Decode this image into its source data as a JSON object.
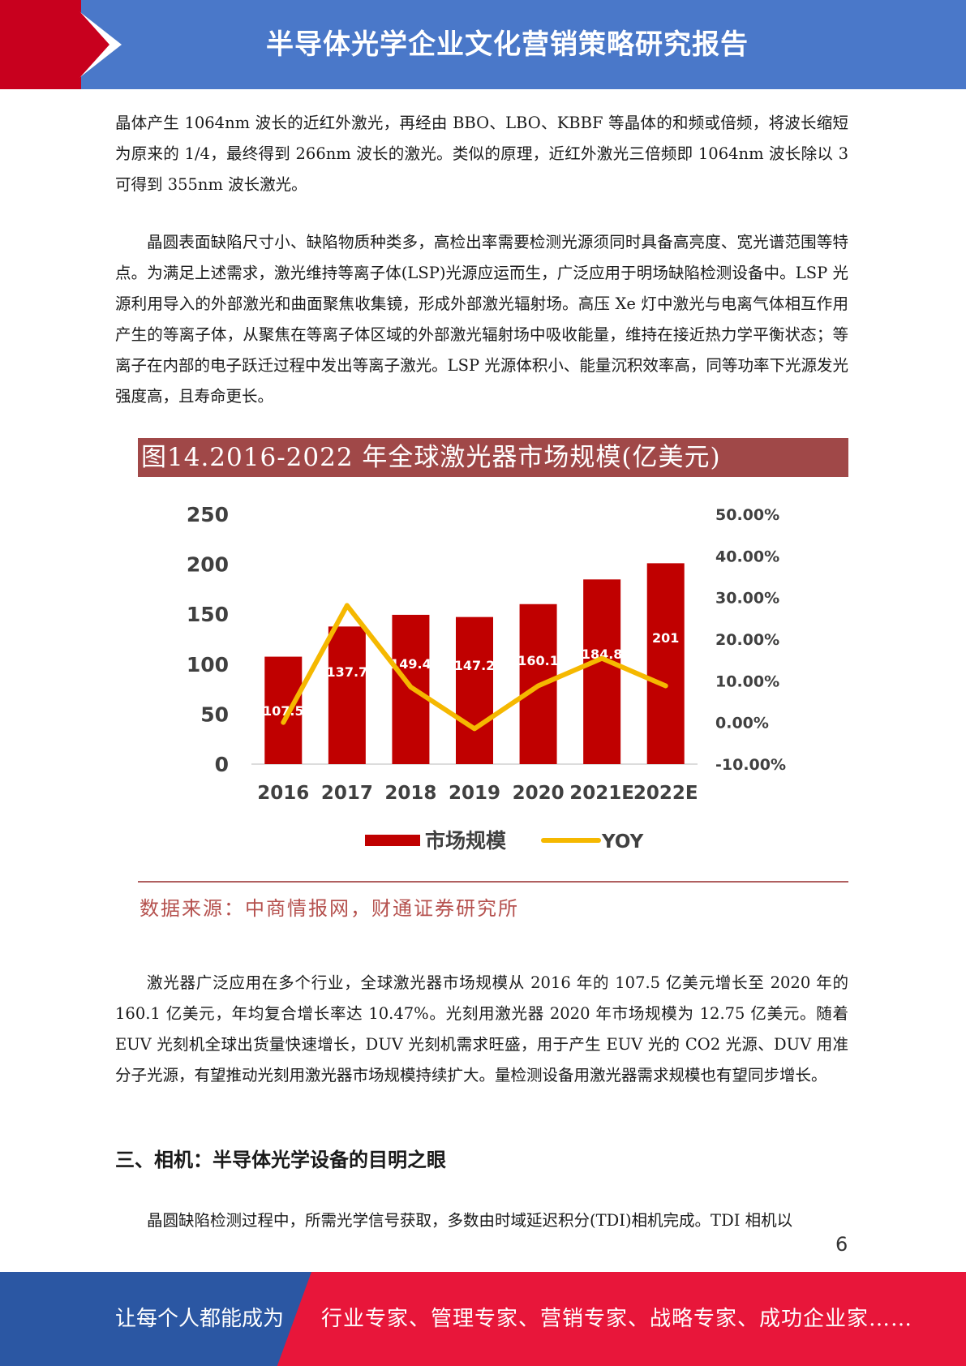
{
  "header": {
    "title": "半导体光学企业文化营销策略研究报告"
  },
  "body": {
    "p1": "晶体产生 1064nm 波长的近红外激光，再经由 BBO、LBO、KBBF 等晶体的和频或倍频，将波长缩短为原来的 1/4，最终得到 266nm 波长的激光。类似的原理，近红外激光三倍频即 1064nm 波长除以 3 可得到 355nm 波长激光。",
    "p2": "晶圆表面缺陷尺寸小、缺陷物质种类多，高检出率需要检测光源须同时具备高亮度、宽光谱范围等特点。为满足上述需求，激光维持等离子体(LSP)光源应运而生，广泛应用于明场缺陷检测设备中。LSP 光源利用导入的外部激光和曲面聚焦收集镜，形成外部激光辐射场。高压 Xe 灯中激光与电离气体相互作用产生的等离子体，从聚焦在等离子体区域的外部激光辐射场中吸收能量，维持在接近热力学平衡状态；等离子在内部的电子跃迁过程中发出等离子激光。LSP 光源体积小、能量沉积效率高，同等功率下光源发光强度高，且寿命更长。",
    "p3": "激光器广泛应用在多个行业，全球激光器市场规模从 2016 年的 107.5 亿美元增长至 2020 年的 160.1 亿美元，年均复合增长率达 10.47%。光刻用激光器 2020 年市场规模为 12.75 亿美元。随着 EUV 光刻机全球出货量快速增长，DUV 光刻机需求旺盛，用于产生 EUV 光的 CO2 光源、DUV 用准分子光源，有望推动光刻用激光器市场规模持续扩大。量检测设备用激光器需求规模也有望同步增长。",
    "heading": "三、相机：半导体光学设备的目明之眼",
    "p4": "晶圆缺陷检测过程中，所需光学信号获取，多数由时域延迟积分(TDI)相机完成。TDI 相机以"
  },
  "figure": {
    "title": "图14.2016-2022 年全球激光器市场规模(亿美元)",
    "source": "数据来源：中商情报网，财通证券研究所"
  },
  "chart_data": {
    "type": "bar",
    "categories": [
      "2016",
      "2017",
      "2018",
      "2019",
      "2020",
      "2021E",
      "2022E"
    ],
    "series": [
      {
        "name": "市场规模",
        "type": "bar",
        "axis": "left",
        "color": "#c00000",
        "values": [
          107.5,
          137.7,
          149.4,
          147.2,
          160.1,
          184.8,
          201
        ],
        "labels": [
          "107.5",
          "137.7",
          "149.4",
          "147.2",
          "160.1",
          "184.8",
          "201"
        ]
      },
      {
        "name": "YOY",
        "type": "line",
        "axis": "right",
        "color": "#f5b800",
        "values": [
          0.0,
          28.1,
          8.5,
          -1.5,
          8.8,
          15.4,
          8.8
        ]
      }
    ],
    "y_left": {
      "ticks": [
        "0",
        "50",
        "100",
        "150",
        "200",
        "250"
      ],
      "range": [
        0,
        250
      ]
    },
    "y_right": {
      "ticks": [
        "-10.00%",
        "0.00%",
        "10.00%",
        "20.00%",
        "30.00%",
        "40.00%",
        "50.00%"
      ],
      "range": [
        -10,
        50
      ]
    },
    "legend": "bottom"
  },
  "page": {
    "number": "6"
  },
  "footer": {
    "left": "让每个人都能成为",
    "right": "行业专家、管理专家、营销专家、战略专家、成功企业家……"
  }
}
